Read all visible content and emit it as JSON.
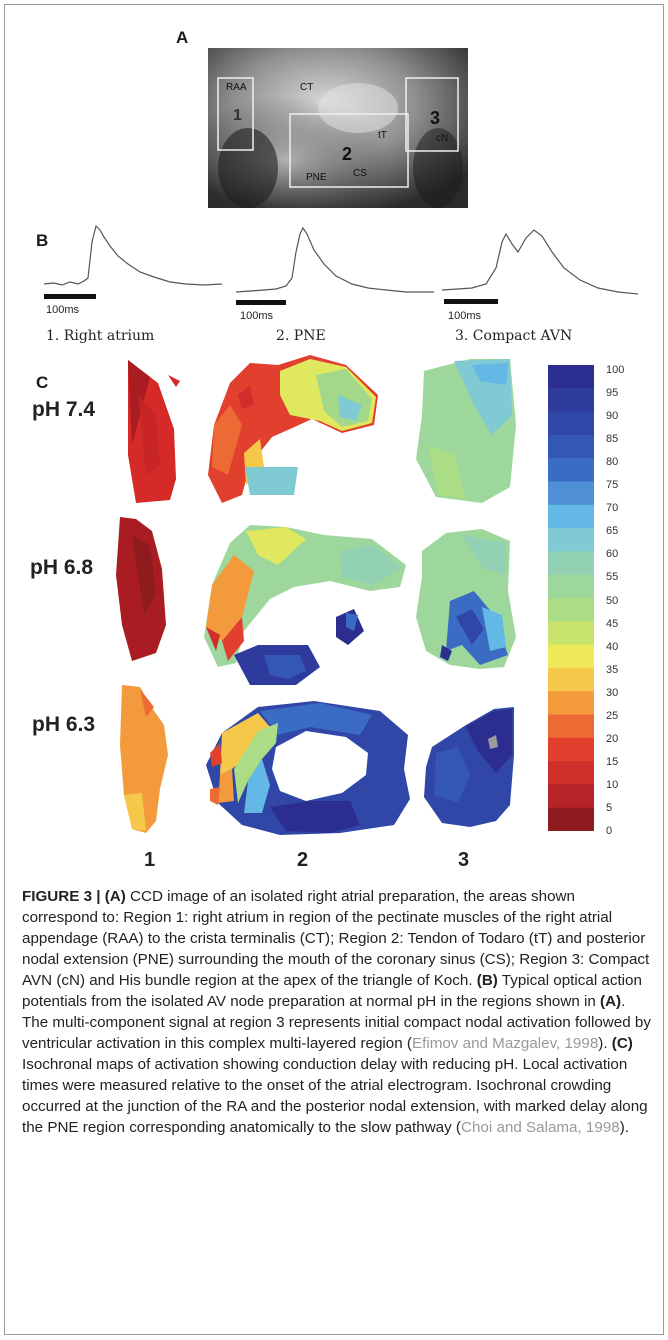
{
  "panels": {
    "a": "A",
    "b": "B",
    "c": "C"
  },
  "photo_labels": {
    "raa": "RAA",
    "ct": "CT",
    "tt": "tT",
    "cn": "cN",
    "pne": "PNE",
    "cs": "CS",
    "r1": "1",
    "r2": "2",
    "r3": "3"
  },
  "traces": [
    {
      "title": "1. Right atrium",
      "scale": "100ms"
    },
    {
      "title": "2. PNE",
      "scale": "100ms"
    },
    {
      "title": "3. Compact AVN",
      "scale": "100ms"
    }
  ],
  "rows": [
    "pH 7.4",
    "pH 6.8",
    "pH 6.3"
  ],
  "columns": [
    "1",
    "2",
    "3"
  ],
  "colorbar": {
    "ticks": [
      "100",
      "95",
      "90",
      "85",
      "80",
      "75",
      "70",
      "65",
      "60",
      "55",
      "50",
      "45",
      "40",
      "35",
      "30",
      "25",
      "20",
      "15",
      "10",
      "5",
      "0"
    ],
    "colors": [
      "#2b2d8f",
      "#2e3b9c",
      "#3147a8",
      "#3457b5",
      "#3a6cc3",
      "#4f8fd6",
      "#63b8e6",
      "#7fcad3",
      "#93d1b5",
      "#9ed79c",
      "#abdc86",
      "#c8e36e",
      "#eee95a",
      "#f6c84a",
      "#f39b3c",
      "#ec6a33",
      "#e0402d",
      "#cf2e2a",
      "#b52428",
      "#8e1b1e"
    ]
  },
  "caption": {
    "head": "FIGURE 3 | (A)",
    "p1": " CCD image of an isolated right atrial preparation, the areas shown correspond to: Region 1: right atrium in region of the pectinate muscles of the right atrial appendage (RAA) to the crista terminalis (CT); Region 2: Tendon of Todaro (tT) and posterior nodal extension (PNE) surrounding the mouth of the coronary sinus (CS); Region 3: Compact AVN (cN) and His bundle region at the apex of the triangle of Koch. ",
    "b": "(B)",
    "p2": " Typical optical action potentials from the isolated AV node preparation at normal pH in the regions shown in ",
    "a2": "(A)",
    "p3": ". The multi-component signal at region 3 represents initial compact nodal activation followed by ventricular activation in this complex multi-layered region (",
    "cite1": "Efimov and Mazgalev, 1998",
    "p4": "). ",
    "c": "(C)",
    "p5": " Isochronal maps of activation showing conduction delay with reducing pH. Local activation times were measured relative to the onset of the atrial electrogram. Isochronal crowding occurred at the junction of the RA and the posterior nodal extension, with marked delay along the PNE region corresponding anatomically to the slow pathway (",
    "cite2": "Choi and Salama, 1998",
    "p6": ")."
  }
}
